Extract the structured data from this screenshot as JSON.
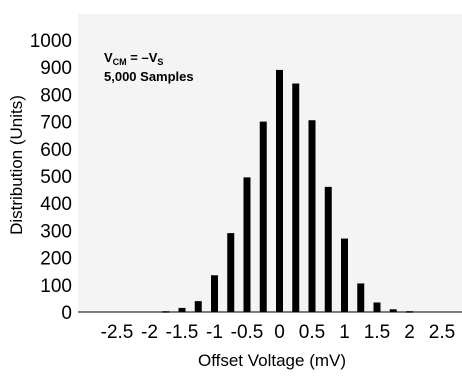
{
  "chart_data": {
    "type": "bar",
    "title": "",
    "xlabel": "Offset Voltage (mV)",
    "ylabel": "Distribution (Units)",
    "xlim": [
      -2.75,
      2.75
    ],
    "ylim": [
      0,
      1000
    ],
    "x_ticks": [
      "-2.5",
      "-2",
      "-1.5",
      "-1",
      "-0.5",
      "0",
      "0.5",
      "1",
      "1.5",
      "2",
      "2.5"
    ],
    "y_ticks": [
      "0",
      "100",
      "200",
      "300",
      "400",
      "500",
      "600",
      "700",
      "800",
      "900",
      "1000"
    ],
    "grid": false,
    "annotation": {
      "line1_main": "V",
      "line1_sub1": "CM",
      "line1_mid": " = –V",
      "line1_sub2": "S",
      "line2": "5,000 Samples"
    },
    "x": [
      -2.5,
      -2.25,
      -2.0,
      -1.75,
      -1.5,
      -1.25,
      -1.0,
      -0.75,
      -0.5,
      -0.25,
      0.0,
      0.25,
      0.5,
      0.75,
      1.0,
      1.25,
      1.5,
      1.75,
      2.0,
      2.25,
      2.5
    ],
    "values": [
      0,
      0,
      0,
      3,
      15,
      40,
      135,
      290,
      495,
      700,
      890,
      840,
      705,
      460,
      270,
      105,
      35,
      10,
      3,
      0,
      0
    ]
  },
  "colors": {
    "bar": "#000000",
    "plot_bg": "#f4f4f4",
    "text": "#000000"
  }
}
